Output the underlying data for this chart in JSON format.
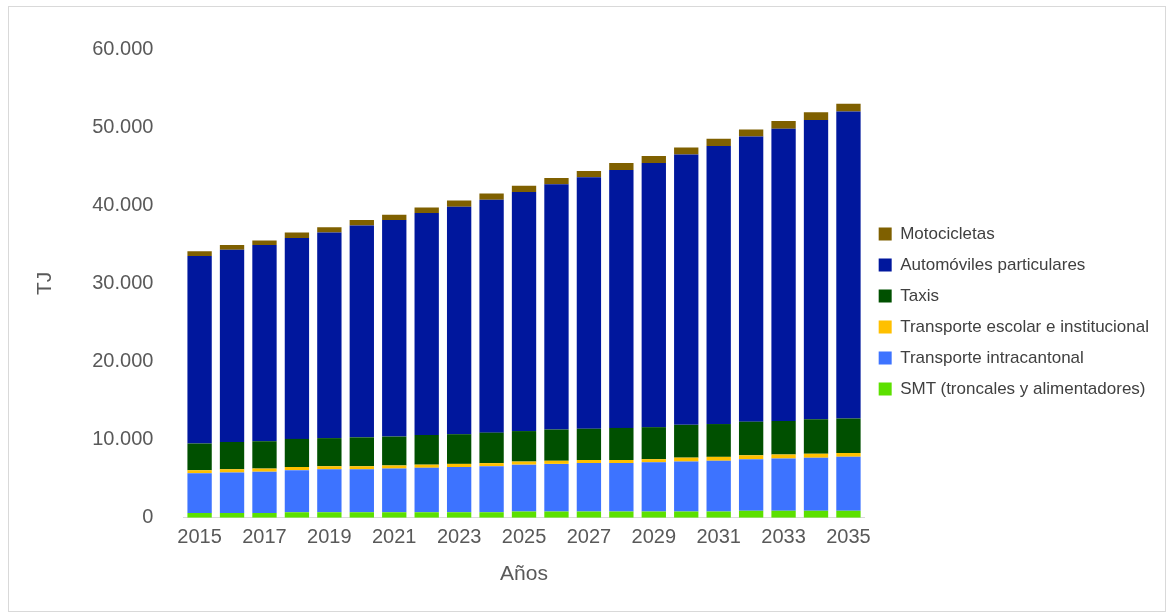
{
  "chart_data": {
    "type": "bar",
    "stacked": true,
    "xlabel": "Años",
    "ylabel": "TJ",
    "legend": "right",
    "categories": [
      "2015",
      null,
      "2017",
      null,
      "2019",
      null,
      "2021",
      null,
      "2023",
      null,
      "2025",
      null,
      "2027",
      null,
      "2029",
      null,
      "2031",
      null,
      "2033",
      null,
      "2035"
    ],
    "ylim": [
      0,
      60000
    ],
    "yticks": [
      {
        "value": 0,
        "label": "0"
      },
      {
        "value": 10000,
        "label": "10.000"
      },
      {
        "value": 20000,
        "label": "20.000"
      },
      {
        "value": 30000,
        "label": "30.000"
      },
      {
        "value": 40000,
        "label": "40.000"
      },
      {
        "value": 50000,
        "label": "50.000"
      },
      {
        "value": 60000,
        "label": "60.000"
      }
    ],
    "series": [
      {
        "name": "SMT (troncales y alimentadores)",
        "color": "#5ce000",
        "values": [
          600,
          600,
          600,
          700,
          700,
          700,
          700,
          700,
          700,
          700,
          800,
          800,
          800,
          800,
          800,
          800,
          800,
          900,
          900,
          900,
          900
        ]
      },
      {
        "name": "Transporte intracantonal",
        "color": "#3d73ff",
        "values": [
          5100,
          5200,
          5300,
          5400,
          5500,
          5500,
          5600,
          5700,
          5800,
          5900,
          6000,
          6100,
          6200,
          6200,
          6300,
          6400,
          6500,
          6600,
          6700,
          6800,
          6900
        ]
      },
      {
        "name": "Transporte escolar e institucional",
        "color": "#ffc000",
        "values": [
          400,
          400,
          400,
          400,
          400,
          400,
          400,
          400,
          400,
          400,
          400,
          400,
          400,
          400,
          400,
          500,
          500,
          500,
          500,
          500,
          500
        ]
      },
      {
        "name": "Taxis",
        "color": "#005000",
        "values": [
          3400,
          3500,
          3500,
          3600,
          3600,
          3700,
          3700,
          3800,
          3800,
          3900,
          3900,
          4000,
          4000,
          4100,
          4100,
          4200,
          4200,
          4300,
          4300,
          4400,
          4400
        ]
      },
      {
        "name": "Automóviles particulares",
        "color": "#00179d",
        "values": [
          24000,
          24600,
          25100,
          25700,
          26300,
          27100,
          27700,
          28400,
          29100,
          29800,
          30600,
          31400,
          32200,
          33000,
          33800,
          34600,
          35600,
          36500,
          37400,
          38300,
          39300
        ]
      },
      {
        "name": "Motocicletas",
        "color": "#7f6000",
        "values": [
          600,
          600,
          600,
          700,
          700,
          700,
          700,
          700,
          800,
          800,
          800,
          800,
          800,
          900,
          900,
          900,
          900,
          900,
          1000,
          1000,
          1000
        ]
      }
    ]
  }
}
